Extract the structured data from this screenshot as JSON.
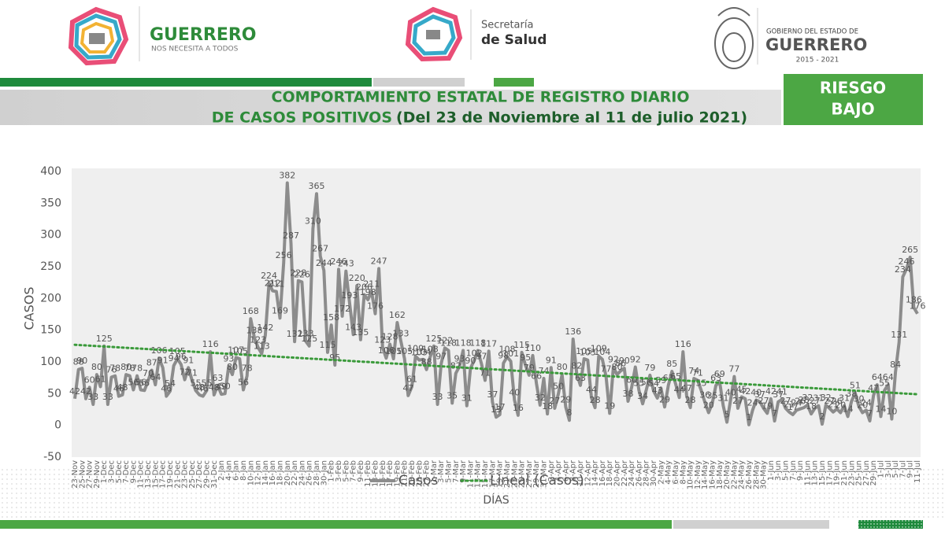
{
  "header": {
    "logo1_title": "GUERRERO",
    "logo1_tagline": "NOS NECESITA A TODOS",
    "logo2_line1": "Secretaría",
    "logo2_line2": "de Salud",
    "logo3_line1": "GOBIERNO DEL ESTADO DE",
    "logo3_line2": "GUERRERO",
    "logo3_years": "2015 - 2021"
  },
  "banner": {
    "title_line1": "COMPORTAMIENTO ESTATAL DE REGISTRO DIARIO",
    "title_line2a": "DE CASOS POSITIVOS",
    "title_line2b": "(Del 23 de Noviembre al 11 de julio 2021)",
    "risk_line1": "RIESGO",
    "risk_line2": "BAJO"
  },
  "chart_data": {
    "type": "line",
    "y_label": "CASOS",
    "x_label": "DÍAS",
    "categories": [
      "23-Nov",
      null,
      "25-Nov",
      null,
      "27-Nov",
      null,
      "29-Nov",
      null,
      "1-Dec",
      null,
      "3-Dec",
      null,
      "5-Dec",
      null,
      "7-Dec",
      null,
      "9-Dec",
      null,
      "11-Dec",
      null,
      "13-Dec",
      null,
      "15-Dec",
      null,
      "17-Dec",
      null,
      "19-Dec",
      null,
      "21-Dec",
      null,
      "23-Dec",
      null,
      "25-Dec",
      null,
      "27-Dec",
      null,
      "29-Dec",
      null,
      "31-Dec",
      null,
      "2-Jan",
      null,
      "4-Jan",
      null,
      "6-Jan",
      null,
      "8-Jan",
      null,
      "10-Jan",
      null,
      "12-Jan",
      null,
      "14-Jan",
      null,
      "16-Jan",
      null,
      "18-Jan",
      null,
      "20-Jan",
      null,
      "22-Jan",
      null,
      "24-Jan",
      null,
      "26-Jan",
      null,
      "28-Jan",
      null,
      "30-Jan",
      null,
      "1-Feb",
      null,
      "3-Feb",
      null,
      "5-Feb",
      null,
      "7-Feb",
      null,
      "9-Feb",
      null,
      "11-Feb",
      null,
      "13-Feb",
      null,
      "15-Feb",
      null,
      "17-Feb",
      null,
      "19-Feb",
      null,
      "21-Feb",
      null,
      "23-Feb",
      null,
      "25-Feb",
      null,
      "27-Feb",
      null,
      "1-Mar",
      null,
      "3-Mar",
      null,
      "5-Mar",
      null,
      "7-Mar",
      null,
      "9-Mar",
      null,
      "11-Mar",
      null,
      "13-Mar",
      null,
      "15-Mar",
      null,
      "17-Mar",
      null,
      "19-Mar",
      null,
      "21-Mar",
      null,
      "23-Mar",
      null,
      "25-Mar",
      null,
      "27-Mar",
      null,
      "29-Mar",
      null,
      "31-Mar",
      null,
      "2-Apr",
      null,
      "4-Apr",
      null,
      "6-Apr",
      null,
      "8-Apr",
      null,
      "10-Apr",
      null,
      "12-Apr",
      null,
      "14-Apr",
      null,
      "16-Apr",
      null,
      "18-Apr",
      null,
      "20-Apr",
      null,
      "22-Apr",
      null,
      "24-Apr",
      null,
      "26-Apr",
      null,
      "28-Apr",
      null,
      "30-Apr",
      null,
      "2-May",
      null,
      "4-May",
      null,
      "6-May",
      null,
      "8-May",
      null,
      "10-May",
      null,
      "12-May",
      null,
      "14-May",
      null,
      "16-May",
      null,
      "18-May",
      null,
      "20-May",
      null,
      "22-May",
      null,
      "24-May",
      null,
      "26-May",
      null,
      "28-May",
      null,
      "30-May",
      null,
      "1-Jun",
      null,
      "3-Jun",
      null,
      "5-Jun",
      null,
      "7-Jun",
      null,
      "9-Jun",
      null,
      "11-Jun",
      null,
      "13-Jun",
      null,
      "15-Jun",
      null,
      "17-Jun",
      null,
      "19-Jun",
      null,
      "21-Jun",
      null,
      "23-Jun",
      null,
      "25-Jun",
      null,
      "27-Jun",
      null,
      "29-Jun",
      null,
      "1-Jul",
      null,
      "3-Jul",
      null,
      "5-Jul",
      null,
      "7-Jul",
      null,
      "9-Jul",
      null,
      "11-Jul"
    ],
    "series": [
      {
        "name": "Casos",
        "color": "#8c8c8c",
        "values": [
          42,
          88,
          90,
          42,
          60,
          33,
          80,
          61,
          125,
          33,
          76,
          78,
          46,
          48,
          80,
          78,
          56,
          78,
          56,
          55,
          70,
          87,
          64,
          106,
          91,
          46,
          54,
          94,
          105,
          96,
          72,
          91,
          71,
          55,
          48,
          46,
          55,
          116,
          48,
          63,
          49,
          50,
          93,
          80,
          107,
          105,
          56,
          78,
          168,
          138,
          123,
          113,
          142,
          224,
          212,
          211,
          169,
          256,
          382,
          287,
          132,
          228,
          226,
          133,
          125,
          310,
          365,
          267,
          244,
          115,
          158,
          95,
          246,
          172,
          243,
          193,
          143,
          220,
          135,
          206,
          198,
          211,
          176,
          247,
          123,
          106,
          128,
          105,
          162,
          133,
          105,
          47,
          61,
          109,
          103,
          104,
          88,
          108,
          125,
          33,
          97,
          122,
          118,
          35,
          82,
          93,
          118,
          31,
          90,
          102,
          118,
          97,
          71,
          117,
          37,
          13,
          17,
          98,
          108,
          101,
          40,
          16,
          115,
          95,
          79,
          110,
          66,
          32,
          74,
          18,
          91,
          27,
          50,
          80,
          29,
          8,
          136,
          82,
          63,
          105,
          103,
          44,
          28,
          109,
          104,
          77,
          19,
          92,
          80,
          86,
          90,
          38,
          60,
          92,
          55,
          34,
          56,
          79,
          54,
          43,
          59,
          29,
          63,
          85,
          65,
          44,
          116,
          47,
          28,
          74,
          71,
          55,
          36,
          20,
          35,
          63,
          69,
          31,
          5,
          40,
          77,
          27,
          45,
          42,
          1,
          24,
          40,
          37,
          27,
          19,
          42,
          7,
          37,
          41,
          27,
          21,
          17,
          24,
          26,
          28,
          32,
          18,
          27,
          31,
          2,
          32,
          27,
          21,
          26,
          20,
          31,
          14,
          38,
          51,
          30,
          20,
          24,
          7,
          47,
          64,
          14,
          55,
          64,
          10,
          84,
          131,
          234,
          246,
          265,
          186,
          176
        ]
      }
    ],
    "trendline": {
      "name": "Lineal (Casos)",
      "color": "#3a9a3a",
      "values": [
        127,
        49
      ]
    },
    "ylim": [
      -50,
      400
    ],
    "yticks": [
      -50,
      0,
      50,
      100,
      150,
      200,
      250,
      300,
      350,
      400
    ],
    "plot_background": "#efefef"
  }
}
